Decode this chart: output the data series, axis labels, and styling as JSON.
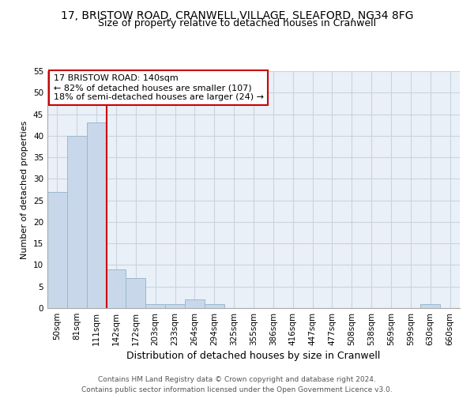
{
  "title1": "17, BRISTOW ROAD, CRANWELL VILLAGE, SLEAFORD, NG34 8FG",
  "title2": "Size of property relative to detached houses in Cranwell",
  "xlabel": "Distribution of detached houses by size in Cranwell",
  "ylabel": "Number of detached properties",
  "bin_labels": [
    "50sqm",
    "81sqm",
    "111sqm",
    "142sqm",
    "172sqm",
    "203sqm",
    "233sqm",
    "264sqm",
    "294sqm",
    "325sqm",
    "355sqm",
    "386sqm",
    "416sqm",
    "447sqm",
    "477sqm",
    "508sqm",
    "538sqm",
    "569sqm",
    "599sqm",
    "630sqm",
    "660sqm"
  ],
  "bar_values": [
    27,
    40,
    43,
    9,
    7,
    1,
    1,
    2,
    1,
    0,
    0,
    0,
    0,
    0,
    0,
    0,
    0,
    0,
    0,
    1,
    0
  ],
  "bar_color": "#c8d8ea",
  "bar_edge_color": "#9ab8d0",
  "vline_x_idx": 3,
  "vline_color": "#cc0000",
  "annotation_line1": "17 BRISTOW ROAD: 140sqm",
  "annotation_line2": "← 82% of detached houses are smaller (107)",
  "annotation_line3": "18% of semi-detached houses are larger (24) →",
  "annotation_box_color": "#ffffff",
  "annotation_box_edge": "#cc0000",
  "ylim": [
    0,
    55
  ],
  "yticks": [
    0,
    5,
    10,
    15,
    20,
    25,
    30,
    35,
    40,
    45,
    50,
    55
  ],
  "grid_color": "#c8d4e0",
  "bg_color": "#eaf0f8",
  "footer": "Contains HM Land Registry data © Crown copyright and database right 2024.\nContains public sector information licensed under the Open Government Licence v3.0.",
  "title1_fontsize": 10,
  "title2_fontsize": 9,
  "xlabel_fontsize": 9,
  "ylabel_fontsize": 8,
  "tick_fontsize": 7.5,
  "annotation_fontsize": 8,
  "footer_fontsize": 6.5
}
